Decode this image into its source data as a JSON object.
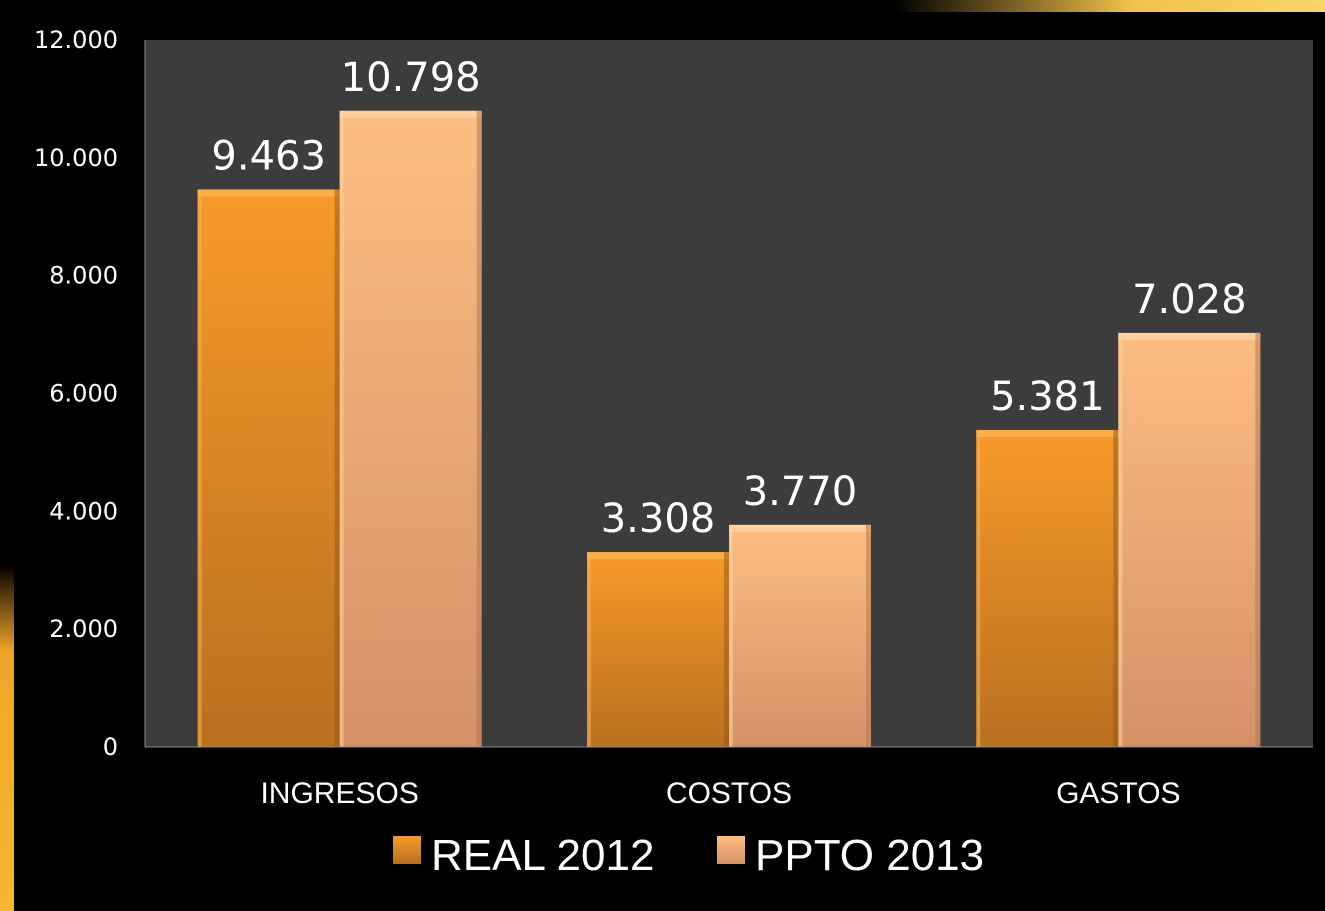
{
  "chart_data": {
    "type": "bar",
    "categories": [
      "INGRESOS",
      "COSTOS",
      "GASTOS"
    ],
    "series": [
      {
        "name": "REAL 2012",
        "values": [
          9463,
          3308,
          5381
        ],
        "labels": [
          "9.463",
          "3.308",
          "5.381"
        ],
        "color": "#f0962a"
      },
      {
        "name": "PPTO 2013",
        "values": [
          10798,
          3770,
          7028
        ],
        "labels": [
          "10.798",
          "3.770",
          "7.028"
        ],
        "color": "#fbb97a"
      }
    ],
    "ylim": [
      0,
      12000
    ],
    "yticks": [
      0,
      2000,
      4000,
      6000,
      8000,
      10000,
      12000
    ],
    "ytick_labels": [
      "0",
      "2.000",
      "4.000",
      "6.000",
      "8.000",
      "10.000",
      "12.000"
    ],
    "grid": false,
    "legend_position": "bottom",
    "plot_background": "#3c3c3c",
    "page_background": "#000000"
  }
}
